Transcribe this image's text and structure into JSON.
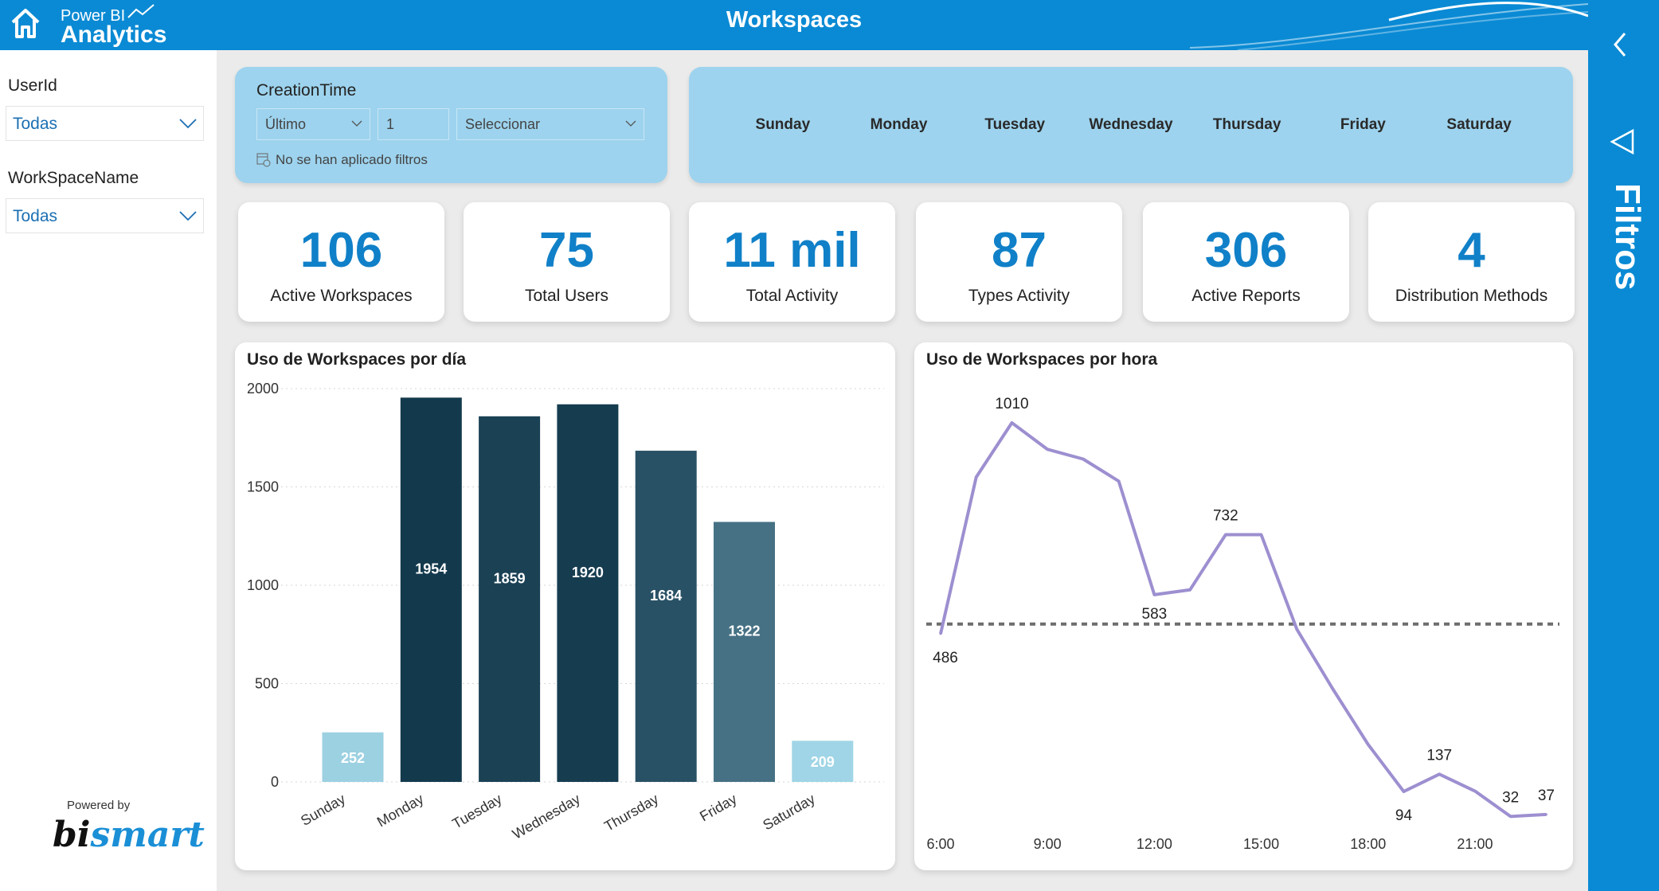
{
  "header": {
    "title": "Workspaces",
    "logo_line1": "Power BI",
    "logo_line2": "Analytics"
  },
  "right_panel": {
    "label": "Filtros"
  },
  "sidebar": {
    "filters": [
      {
        "label": "UserId",
        "value": "Todas"
      },
      {
        "label": "WorkSpaceName",
        "value": "Todas"
      }
    ],
    "powered_by": "Powered by",
    "brand": "bismart"
  },
  "creation_time": {
    "label": "CreationTime",
    "mode": "Último",
    "number": "1",
    "unit_placeholder": "Seleccionar",
    "status": "No se han aplicado filtros"
  },
  "weekdays": [
    "Sunday",
    "Monday",
    "Tuesday",
    "Wednesday",
    "Thursday",
    "Friday",
    "Saturday"
  ],
  "kpis": [
    {
      "value": "106",
      "label": "Active Workspaces"
    },
    {
      "value": "75",
      "label": "Total Users"
    },
    {
      "value": "11 mil",
      "label": "Total Activity"
    },
    {
      "value": "87",
      "label": "Types Activity"
    },
    {
      "value": "306",
      "label": "Active Reports"
    },
    {
      "value": "4",
      "label": "Distribution Methods"
    }
  ],
  "chart_data": [
    {
      "type": "bar",
      "title": "Uso de Workspaces por día",
      "categories": [
        "Sunday",
        "Monday",
        "Tuesday",
        "Wednesday",
        "Thursday",
        "Friday",
        "Saturday"
      ],
      "values": [
        252,
        1954,
        1859,
        1920,
        1684,
        1322,
        209
      ],
      "ylim": [
        0,
        2000
      ],
      "yticks": [
        0,
        500,
        1000,
        1500,
        2000
      ],
      "grid": true,
      "color_low": "#9fd5e6",
      "color_high": "#13394d"
    },
    {
      "type": "line",
      "title": "Uso de Workspaces por hora",
      "x": [
        "6:00",
        "7:00",
        "8:00",
        "9:00",
        "10:00",
        "11:00",
        "12:00",
        "13:00",
        "14:00",
        "15:00",
        "16:00",
        "17:00",
        "18:00",
        "19:00",
        "20:00",
        "21:00",
        "22:00",
        "23:00"
      ],
      "values": [
        486,
        875,
        1010,
        944,
        920,
        865,
        583,
        595,
        732,
        732,
        497,
        350,
        211,
        94,
        137,
        95,
        32,
        37
      ],
      "xticks": [
        "6:00",
        "9:00",
        "12:00",
        "15:00",
        "18:00",
        "21:00"
      ],
      "labeled_points": {
        "6:00": "486",
        "8:00": "1010",
        "12:00": "583",
        "14:00": "732",
        "19:00": "94",
        "20:00": "137",
        "22:00": "32",
        "23:00": "37"
      },
      "average_line": 510,
      "color": "#9d8fd0",
      "average_color": "#6e6e6e"
    }
  ]
}
